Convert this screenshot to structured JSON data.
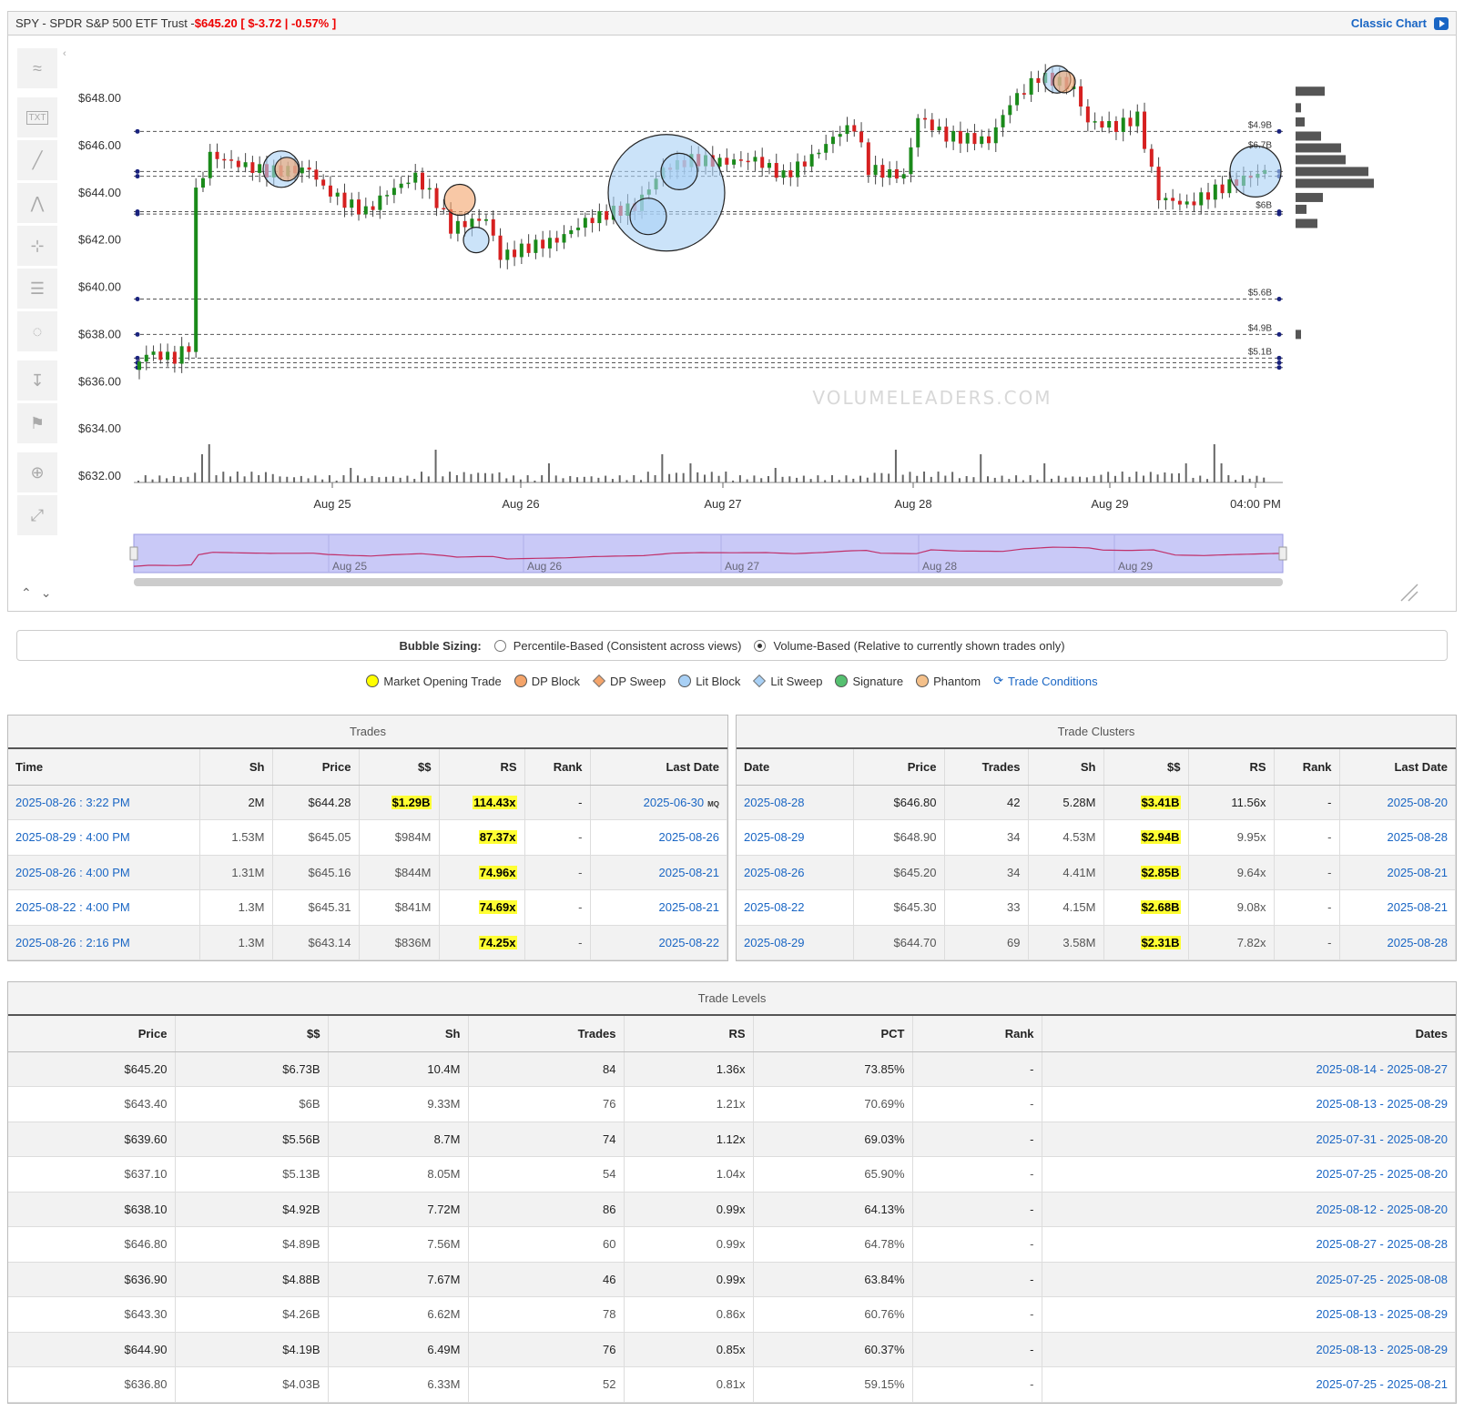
{
  "header": {
    "symbol": "SPY - SPDR S&P 500 ETF Trust - ",
    "price": "$645.20",
    "change": "[ $-3.72 | -0.57% ]",
    "classic_label": "Classic Chart"
  },
  "chart_data": {
    "type": "candlestick",
    "y_labels": [
      "$648.00",
      "$646.00",
      "$644.00",
      "$642.00",
      "$640.00",
      "$638.00",
      "$636.00",
      "$634.00",
      "$632.00"
    ],
    "y_values": [
      648,
      646,
      644,
      642,
      640,
      638,
      636,
      634,
      632
    ],
    "x_labels": [
      "Aug 25",
      "Aug 26",
      "Aug 27",
      "Aug 28",
      "Aug 29",
      "04:00 PM"
    ],
    "navigator_labels": [
      "Aug 25",
      "Aug 26",
      "Aug 27",
      "Aug 28",
      "Aug 29"
    ],
    "level_lines": [
      {
        "price": 646.6,
        "label": "$4.9B"
      },
      {
        "price": 644.9,
        "label": ""
      },
      {
        "price": 644.7,
        "label": ""
      },
      {
        "price": 643.2,
        "label": "$6B"
      },
      {
        "price": 643.1,
        "label": ""
      },
      {
        "price": 639.5,
        "label": "$5.6B"
      },
      {
        "price": 638.0,
        "label": "$4.9B"
      },
      {
        "price": 637.0,
        "label": "$5.1B"
      },
      {
        "price": 636.8,
        "label": ""
      },
      {
        "price": 636.6,
        "label": ""
      }
    ],
    "bubble_labels": [
      "$6.7B"
    ],
    "watermark": "VOLUMELEADERS.COM"
  },
  "tools": [
    "trend-icon",
    "text-icon",
    "line-icon",
    "pattern-icon",
    "crosshair-icon",
    "fib-icon",
    "hide-icon",
    "measure-icon",
    "flag-icon",
    "zoom-icon",
    "expand-icon"
  ],
  "bubble_sizing": {
    "label": "Bubble Sizing:",
    "option1": "Percentile-Based (Consistent across views)",
    "option2": "Volume-Based (Relative to currently shown trades only)"
  },
  "legend": [
    {
      "label": "Market Opening Trade",
      "color": "#ffff00",
      "shape": "dot"
    },
    {
      "label": "DP Block",
      "color": "#f4a46a",
      "shape": "dot"
    },
    {
      "label": "DP Sweep",
      "color": "#f4a46a",
      "shape": "diamond"
    },
    {
      "label": "Lit Block",
      "color": "#a8d0f5",
      "shape": "dot"
    },
    {
      "label": "Lit Sweep",
      "color": "#a8d0f5",
      "shape": "diamond"
    },
    {
      "label": "Signature",
      "color": "#55c070",
      "shape": "dot"
    },
    {
      "label": "Phantom",
      "color": "#f4c08a",
      "shape": "dot"
    }
  ],
  "legend_conditions": "Trade Conditions",
  "trades": {
    "title": "Trades",
    "headers": [
      "Time",
      "Sh",
      "Price",
      "$$",
      "RS",
      "Rank",
      "Last Date"
    ],
    "rows": [
      {
        "time": "2025-08-26 : 3:22 PM",
        "sh": "2M",
        "price": "$644.28",
        "dollars": "$1.29B",
        "rs": "114.43x",
        "rank": "-",
        "last": "2025-06-30",
        "mq": "MQ"
      },
      {
        "time": "2025-08-29 : 4:00 PM",
        "sh": "1.53M",
        "price": "$645.05",
        "dollars": "$984M",
        "rs": "87.37x",
        "rank": "-",
        "last": "2025-08-26",
        "mq": ""
      },
      {
        "time": "2025-08-26 : 4:00 PM",
        "sh": "1.31M",
        "price": "$645.16",
        "dollars": "$844M",
        "rs": "74.96x",
        "rank": "-",
        "last": "2025-08-21",
        "mq": ""
      },
      {
        "time": "2025-08-22 : 4:00 PM",
        "sh": "1.3M",
        "price": "$645.31",
        "dollars": "$841M",
        "rs": "74.69x",
        "rank": "-",
        "last": "2025-08-21",
        "mq": ""
      },
      {
        "time": "2025-08-26 : 2:16 PM",
        "sh": "1.3M",
        "price": "$643.14",
        "dollars": "$836M",
        "rs": "74.25x",
        "rank": "-",
        "last": "2025-08-22",
        "mq": ""
      }
    ]
  },
  "clusters": {
    "title": "Trade Clusters",
    "headers": [
      "Date",
      "Price",
      "Trades",
      "Sh",
      "$$",
      "RS",
      "Rank",
      "Last Date"
    ],
    "rows": [
      {
        "date": "2025-08-28",
        "price": "$646.80",
        "trades": "42",
        "sh": "5.28M",
        "dollars": "$3.41B",
        "rs": "11.56x",
        "rank": "-",
        "last": "2025-08-20"
      },
      {
        "date": "2025-08-29",
        "price": "$648.90",
        "trades": "34",
        "sh": "4.53M",
        "dollars": "$2.94B",
        "rs": "9.95x",
        "rank": "-",
        "last": "2025-08-28"
      },
      {
        "date": "2025-08-26",
        "price": "$645.20",
        "trades": "34",
        "sh": "4.41M",
        "dollars": "$2.85B",
        "rs": "9.64x",
        "rank": "-",
        "last": "2025-08-21"
      },
      {
        "date": "2025-08-22",
        "price": "$645.30",
        "trades": "33",
        "sh": "4.15M",
        "dollars": "$2.68B",
        "rs": "9.08x",
        "rank": "-",
        "last": "2025-08-21"
      },
      {
        "date": "2025-08-29",
        "price": "$644.70",
        "trades": "69",
        "sh": "3.58M",
        "dollars": "$2.31B",
        "rs": "7.82x",
        "rank": "-",
        "last": "2025-08-28"
      }
    ]
  },
  "levels": {
    "title": "Trade Levels",
    "headers": [
      "Price",
      "$$",
      "Sh",
      "Trades",
      "RS",
      "PCT",
      "Rank",
      "Dates"
    ],
    "rows": [
      {
        "price": "$645.20",
        "dollars": "$6.73B",
        "sh": "10.4M",
        "trades": "84",
        "rs": "1.36x",
        "pct": "73.85%",
        "rank": "-",
        "dates": "2025-08-14 - 2025-08-27"
      },
      {
        "price": "$643.40",
        "dollars": "$6B",
        "sh": "9.33M",
        "trades": "76",
        "rs": "1.21x",
        "pct": "70.69%",
        "rank": "-",
        "dates": "2025-08-13 - 2025-08-29"
      },
      {
        "price": "$639.60",
        "dollars": "$5.56B",
        "sh": "8.7M",
        "trades": "74",
        "rs": "1.12x",
        "pct": "69.03%",
        "rank": "-",
        "dates": "2025-07-31 - 2025-08-20"
      },
      {
        "price": "$637.10",
        "dollars": "$5.13B",
        "sh": "8.05M",
        "trades": "54",
        "rs": "1.04x",
        "pct": "65.90%",
        "rank": "-",
        "dates": "2025-07-25 - 2025-08-20"
      },
      {
        "price": "$638.10",
        "dollars": "$4.92B",
        "sh": "7.72M",
        "trades": "86",
        "rs": "0.99x",
        "pct": "64.13%",
        "rank": "-",
        "dates": "2025-08-12 - 2025-08-20"
      },
      {
        "price": "$646.80",
        "dollars": "$4.89B",
        "sh": "7.56M",
        "trades": "60",
        "rs": "0.99x",
        "pct": "64.78%",
        "rank": "-",
        "dates": "2025-08-27 - 2025-08-28"
      },
      {
        "price": "$636.90",
        "dollars": "$4.88B",
        "sh": "7.67M",
        "trades": "46",
        "rs": "0.99x",
        "pct": "63.84%",
        "rank": "-",
        "dates": "2025-07-25 - 2025-08-08"
      },
      {
        "price": "$643.30",
        "dollars": "$4.26B",
        "sh": "6.62M",
        "trades": "78",
        "rs": "0.86x",
        "pct": "60.76%",
        "rank": "-",
        "dates": "2025-08-13 - 2025-08-29"
      },
      {
        "price": "$644.90",
        "dollars": "$4.19B",
        "sh": "6.49M",
        "trades": "76",
        "rs": "0.85x",
        "pct": "60.37%",
        "rank": "-",
        "dates": "2025-08-13 - 2025-08-29"
      },
      {
        "price": "$636.80",
        "dollars": "$4.03B",
        "sh": "6.33M",
        "trades": "52",
        "rs": "0.81x",
        "pct": "59.15%",
        "rank": "-",
        "dates": "2025-07-25 - 2025-08-21"
      }
    ]
  }
}
